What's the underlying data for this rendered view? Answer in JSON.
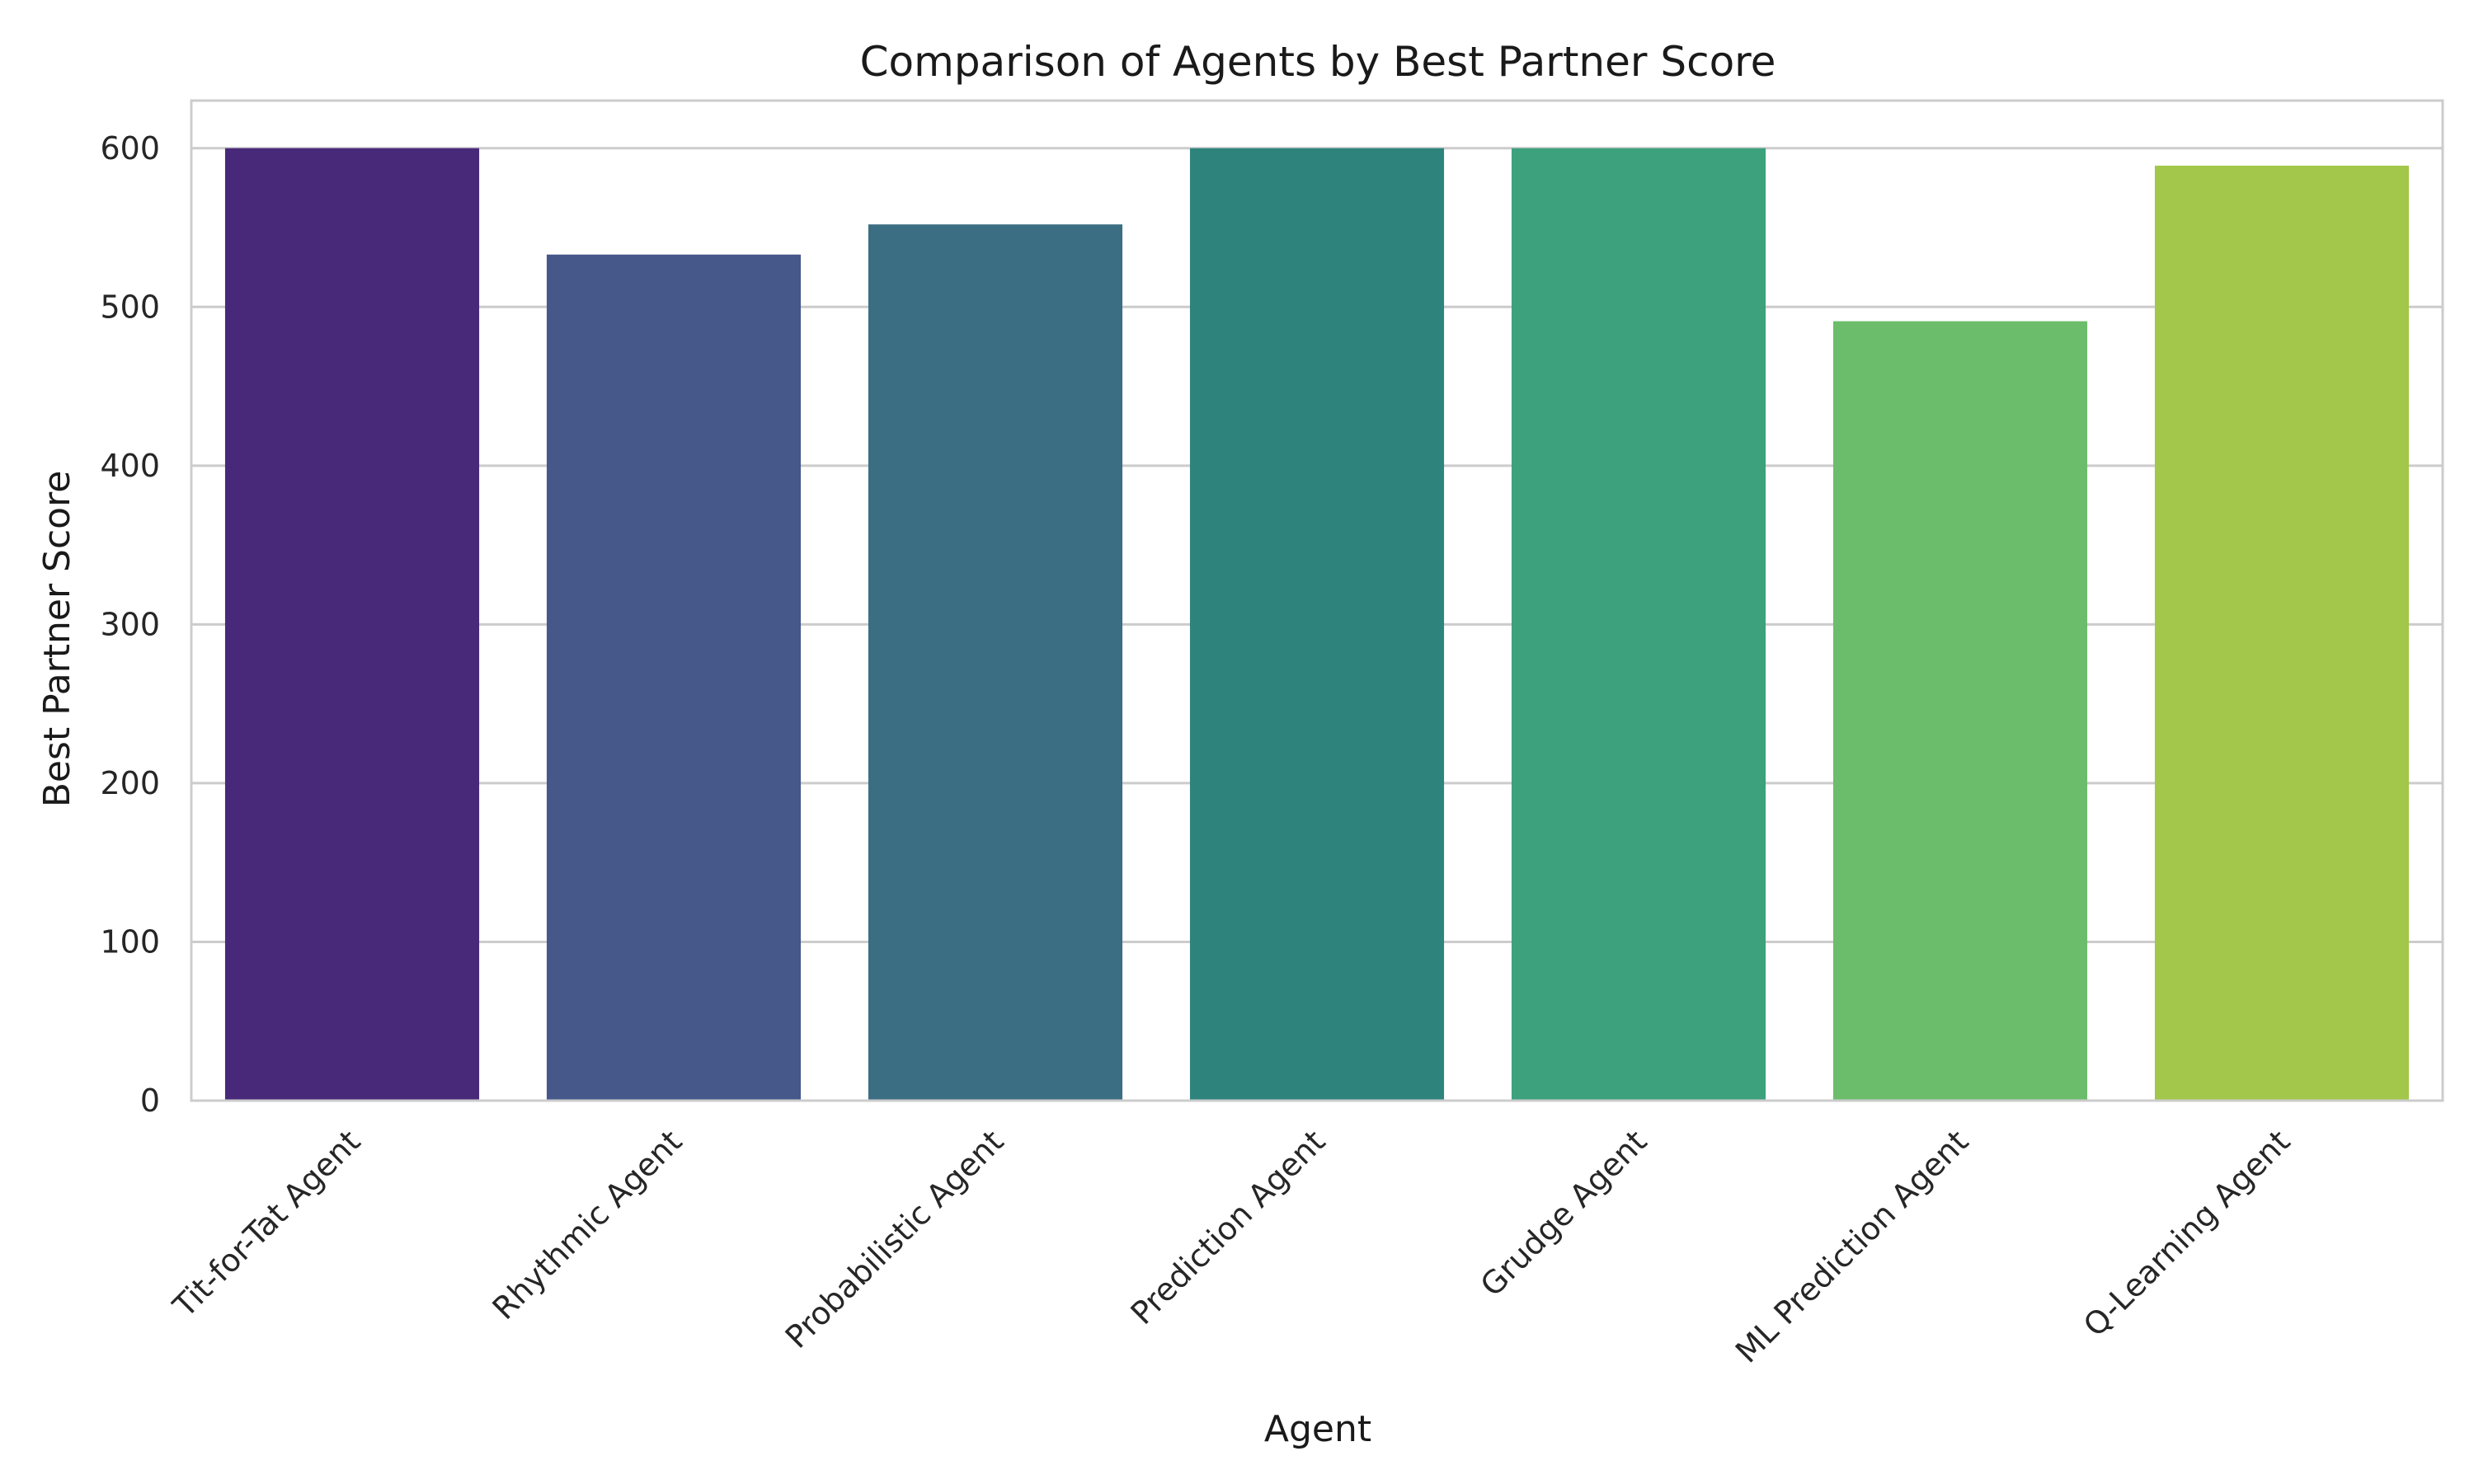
{
  "chart_data": {
    "type": "bar",
    "title": "Comparison of Agents by Best Partner Score",
    "xlabel": "Agent",
    "ylabel": "Best Partner Score",
    "categories": [
      "Tit-for-Tat Agent",
      "Rhythmic Agent",
      "Probabilistic Agent",
      "Prediction Agent",
      "Grudge Agent",
      "ML Prediction Agent",
      "Q-Learning Agent"
    ],
    "values": [
      600,
      533,
      552,
      600,
      600,
      491,
      589
    ],
    "colors": [
      "#482878",
      "#46578a",
      "#3b6e82",
      "#2e847c",
      "#3da17d",
      "#6cbd6b",
      "#a3c74a"
    ],
    "ylim": [
      0,
      630
    ],
    "yticks": [
      0,
      100,
      200,
      300,
      400,
      500,
      600
    ],
    "grid": "horizontal"
  }
}
